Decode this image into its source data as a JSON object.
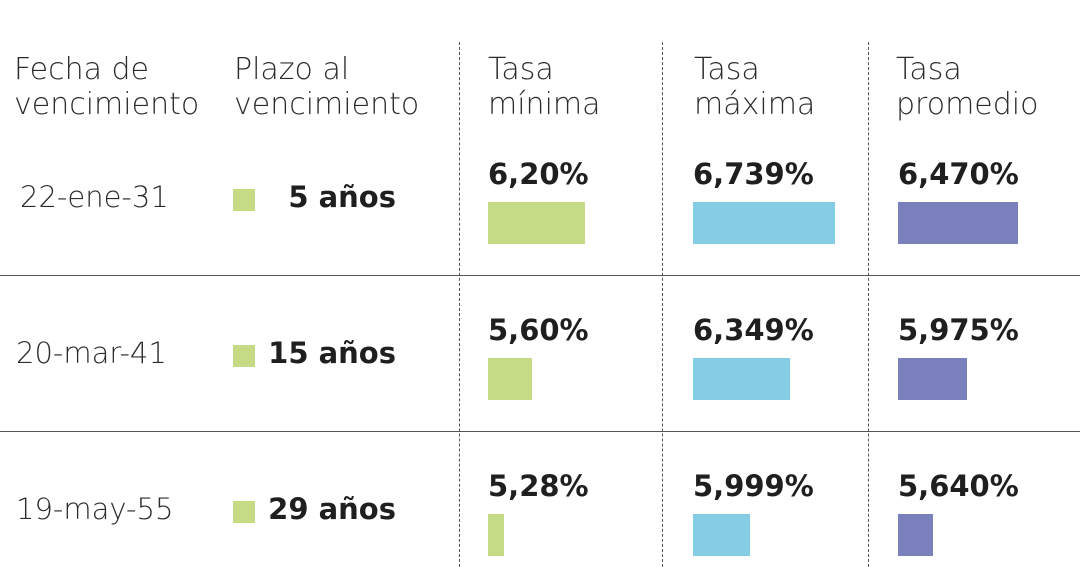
{
  "headers": {
    "fecha": [
      "Fecha de",
      "vencimiento"
    ],
    "plazo": [
      "Plazo al",
      "vencimiento"
    ],
    "minima": [
      "Tasa",
      "mínima"
    ],
    "maxima": [
      "Tasa",
      "máxima"
    ],
    "promedio": [
      "Tasa",
      "promedio"
    ]
  },
  "colors": {
    "minima": "#c5db86",
    "maxima": "#85cde4",
    "promedio": "#7a80bc",
    "term_marker": "#c5db86"
  },
  "chart_data": {
    "type": "table",
    "columns": [
      "Fecha de vencimiento",
      "Plazo al vencimiento",
      "Tasa mínima",
      "Tasa máxima",
      "Tasa promedio"
    ],
    "rows": [
      {
        "fecha": "22-ene-31",
        "plazo": "5 años",
        "minima_label": "6,20%",
        "maxima_label": "6,739%",
        "promedio_label": "6,470%",
        "minima": 6.2,
        "maxima": 6.739,
        "promedio": 6.47
      },
      {
        "fecha": "20-mar-41",
        "plazo": "15 años",
        "minima_label": "5,60%",
        "maxima_label": "6,349%",
        "promedio_label": "5,975%",
        "minima": 5.6,
        "maxima": 6.349,
        "promedio": 5.975
      },
      {
        "fecha": "19-may-55",
        "plazo": "29 años",
        "minima_label": "5,28%",
        "maxima_label": "5,999%",
        "promedio_label": "5,640%",
        "minima": 5.28,
        "maxima": 5.999,
        "promedio": 5.64
      }
    ]
  }
}
